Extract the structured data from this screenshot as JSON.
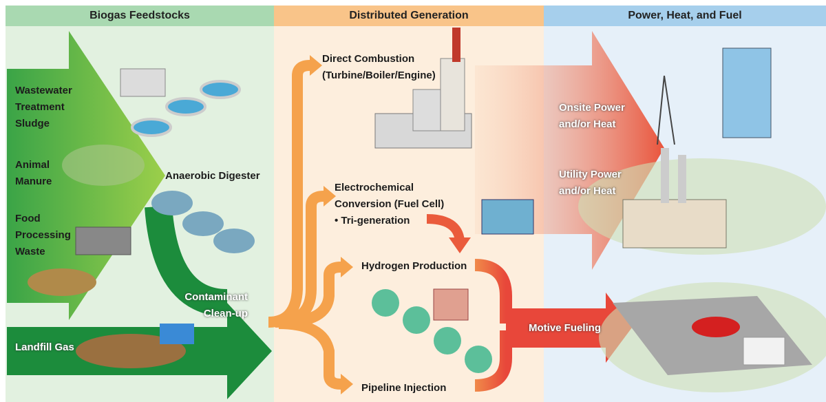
{
  "header": {
    "columns": [
      "Biogas Feedstocks",
      "Distributed Generation",
      "Power, Heat, and Fuel"
    ]
  },
  "labels": [
    "Wastewater\nTreatment\nSludge",
    "Animal\nManure",
    "Food\nProcessing\nWaste",
    "Landfill Gas",
    "Anaerobic Digester",
    "Contaminant\nClean-up",
    "Direct Combustion\n(Turbine/Boiler/Engine)",
    "Electrochemical\nConversion (Fuel Cell)\n• Tri-generation",
    "Hydrogen Production",
    "Pipeline Injection",
    "Onsite Power\nand/or Heat",
    "Utility Power\nand/or Heat",
    "Motive Fueling"
  ]
}
